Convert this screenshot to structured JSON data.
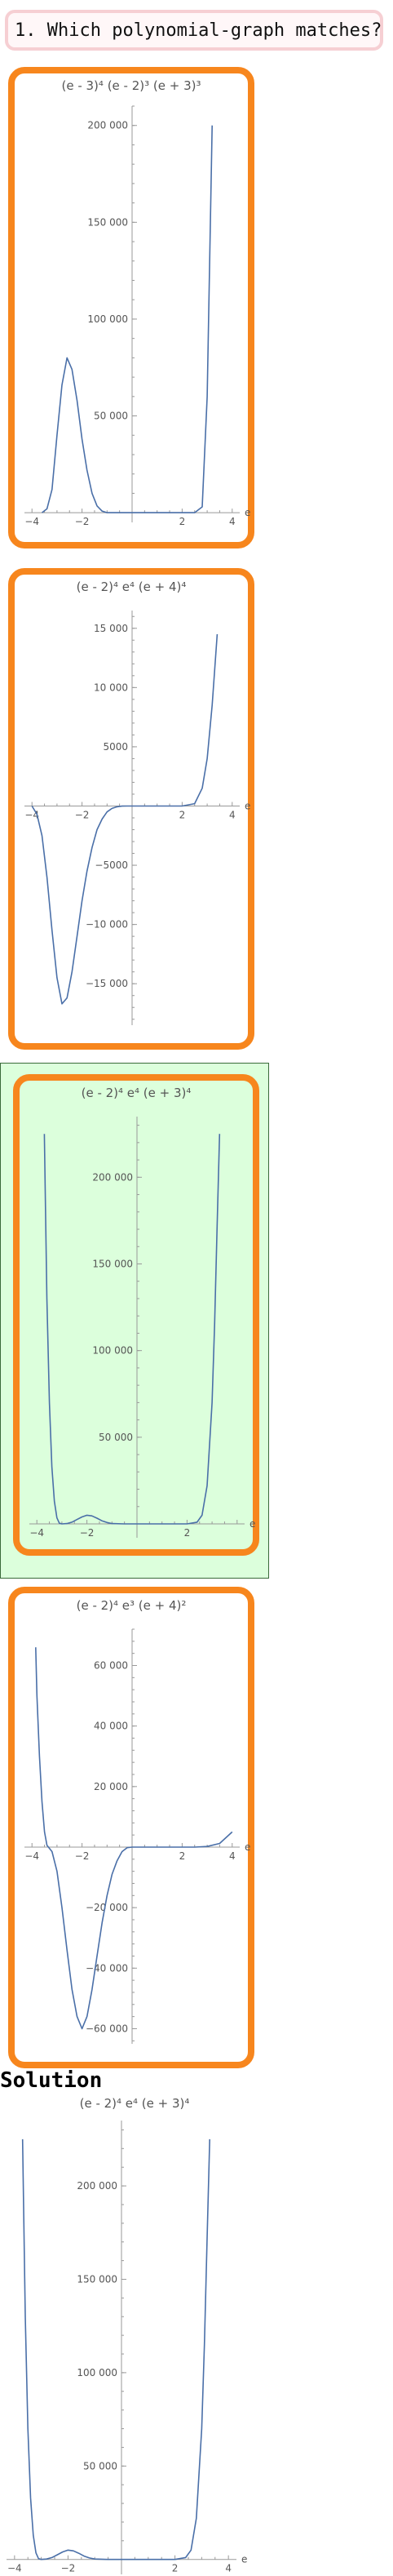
{
  "question": {
    "label": "1. Which polynomial-graph matches?"
  },
  "charts": [
    {
      "id": "choice-1",
      "title": "(e - 3)⁴ (e - 2)³ (e + 3)³",
      "axis_label": "e",
      "xlim": [
        -4.3,
        4.3
      ],
      "ylim": [
        -5000,
        210000
      ],
      "x_ticks": [
        -4,
        -2,
        2,
        4
      ],
      "y_ticks": [
        200000,
        150000,
        100000,
        50000
      ],
      "y_tick_labels": [
        "200 000",
        "150 000",
        "100 000",
        "50 000"
      ],
      "line_color": "#4a6fa8",
      "chart_data": {
        "type": "line",
        "series": [
          {
            "x": [
              -3.6,
              -3.4,
              -3.2,
              -3.0,
              -2.8,
              -2.6,
              -2.4,
              -2.2,
              -2.0,
              -1.8,
              -1.6,
              -1.4,
              -1.2,
              -1.0,
              -0.5,
              0,
              0.5,
              1,
              1.5,
              2,
              2.5,
              2.8,
              3.0,
              3.2
            ],
            "y": [
              0,
              2000,
              12000,
              40000,
              66000,
              80000,
              74000,
              58000,
              38000,
              22000,
              10000,
              3500,
              800,
              0,
              0,
              0,
              0,
              0,
              0,
              0,
              0,
              3000,
              60000,
              200000
            ]
          }
        ]
      }
    },
    {
      "id": "choice-2",
      "title": "(e - 2)⁴ e⁴ (e + 4)⁴",
      "axis_label": "e",
      "xlim": [
        -4.3,
        4.3
      ],
      "ylim": [
        -18500,
        16500
      ],
      "x_ticks": [
        -4,
        -2,
        2,
        4
      ],
      "y_ticks": [
        15000,
        10000,
        5000,
        -5000,
        -10000,
        -15000
      ],
      "y_tick_labels": [
        "15 000",
        "10 000",
        "5000",
        "-5000",
        "-10 000",
        "-15 000"
      ],
      "line_color": "#4a6fa8",
      "chart_data": {
        "type": "line",
        "series": [
          {
            "x": [
              -4.0,
              -3.8,
              -3.6,
              -3.4,
              -3.2,
              -3.0,
              -2.8,
              -2.6,
              -2.4,
              -2.2,
              -2.0,
              -1.8,
              -1.6,
              -1.4,
              -1.2,
              -1.0,
              -0.8,
              -0.6,
              -0.4,
              -0.2,
              0,
              0.5,
              1.0,
              1.5,
              2.0,
              2.5,
              2.8,
              3.0,
              3.2,
              3.4
            ],
            "y": [
              0,
              -700,
              -2500,
              -6000,
              -10500,
              -14500,
              -16700,
              -16200,
              -14000,
              -11000,
              -8000,
              -5500,
              -3500,
              -2000,
              -1100,
              -500,
              -200,
              -60,
              -10,
              0,
              0,
              0,
              0,
              0,
              0,
              200,
              1500,
              4000,
              8500,
              14500
            ]
          }
        ]
      }
    },
    {
      "id": "choice-3",
      "title": "(e - 2)⁴ e⁴ (e + 3)⁴",
      "axis_label": "e",
      "xlim": [
        -4.3,
        4.3
      ],
      "ylim": [
        -8000,
        235000
      ],
      "x_ticks": [
        -4,
        -2,
        2
      ],
      "y_ticks": [
        200000,
        150000,
        100000,
        50000
      ],
      "y_tick_labels": [
        "200 000",
        "150 000",
        "100 000",
        "50 000"
      ],
      "line_color": "#4a6fa8",
      "chart_data": {
        "type": "line",
        "series": [
          {
            "x": [
              -3.7,
              -3.6,
              -3.5,
              -3.4,
              -3.3,
              -3.2,
              -3.1,
              -3.0,
              -2.8,
              -2.6,
              -2.4,
              -2.2,
              -2.0,
              -1.8,
              -1.6,
              -1.4,
              -1.2,
              -1.0,
              -0.5,
              0,
              0.5,
              1.0,
              1.5,
              2.0,
              2.4,
              2.6,
              2.8,
              3.0,
              3.1,
              3.2,
              3.3
            ],
            "y": [
              225000,
              130000,
              70000,
              33000,
              13000,
              3500,
              400,
              0,
              200,
              1000,
              2500,
              4000,
              5000,
              4600,
              3300,
              1800,
              800,
              200,
              0,
              0,
              0,
              0,
              0,
              0,
              1000,
              5000,
              22000,
              70000,
              115000,
              170000,
              225000
            ]
          }
        ]
      }
    },
    {
      "id": "choice-4",
      "title": "(e - 2)⁴ e³ (e + 4)²",
      "axis_label": "e",
      "xlim": [
        -4.3,
        4.3
      ],
      "ylim": [
        -65000,
        72000
      ],
      "x_ticks": [
        -4,
        -2,
        2,
        4
      ],
      "y_ticks": [
        60000,
        40000,
        20000,
        -20000,
        -40000,
        -60000
      ],
      "y_tick_labels": [
        "60 000",
        "40 000",
        "20 000",
        "-20 000",
        "-40 000",
        "-60 000"
      ],
      "line_color": "#4a6fa8",
      "chart_data": {
        "type": "line",
        "series": [
          {
            "x": [
              -3.85,
              -3.8,
              -3.7,
              -3.6,
              -3.5,
              -3.4,
              -3.2,
              -3.0,
              -2.8,
              -2.6,
              -2.4,
              -2.2,
              -2.0,
              -1.8,
              -1.6,
              -1.4,
              -1.2,
              -1.0,
              -0.8,
              -0.6,
              -0.4,
              -0.2,
              0,
              0.5,
              1.0,
              1.5,
              2.0,
              2.5,
              3.0,
              3.5,
              4.0
            ],
            "y": [
              66000,
              50000,
              30000,
              15000,
              5000,
              600,
              -1500,
              -8000,
              -20000,
              -34000,
              -47000,
              -56000,
              -60000,
              -56000,
              -47000,
              -36000,
              -25000,
              -16000,
              -9000,
              -4500,
              -1500,
              -200,
              0,
              0,
              0,
              0,
              0,
              0,
              200,
              1200,
              5000
            ]
          }
        ]
      }
    },
    {
      "id": "solution",
      "title": "(e - 2)⁴ e⁴ (e + 3)⁴",
      "axis_label": "e",
      "xlim": [
        -4.3,
        4.3
      ],
      "ylim": [
        -8000,
        235000
      ],
      "x_ticks": [
        -4,
        -2,
        2,
        4
      ],
      "y_ticks": [
        200000,
        150000,
        100000,
        50000
      ],
      "y_tick_labels": [
        "200 000",
        "150 000",
        "100 000",
        "50 000"
      ],
      "line_color": "#4a6fa8",
      "chart_data": {
        "type": "line",
        "series": [
          {
            "x": [
              -3.7,
              -3.6,
              -3.5,
              -3.4,
              -3.3,
              -3.2,
              -3.1,
              -3.0,
              -2.8,
              -2.6,
              -2.4,
              -2.2,
              -2.0,
              -1.8,
              -1.6,
              -1.4,
              -1.2,
              -1.0,
              -0.5,
              0,
              0.5,
              1.0,
              1.5,
              2.0,
              2.4,
              2.6,
              2.8,
              3.0,
              3.1,
              3.2,
              3.3
            ],
            "y": [
              225000,
              130000,
              70000,
              33000,
              13000,
              3500,
              400,
              0,
              200,
              1000,
              2500,
              4000,
              5000,
              4600,
              3300,
              1800,
              800,
              200,
              0,
              0,
              0,
              0,
              0,
              0,
              1000,
              5000,
              22000,
              70000,
              115000,
              170000,
              225000
            ]
          }
        ]
      }
    }
  ],
  "solution": {
    "heading": "Solution"
  },
  "colors": {
    "choice_border": "#f7861d",
    "correct_fill": "#dcffdc",
    "question_border": "#f6cfd3",
    "plot_line": "#4a6fa8"
  }
}
